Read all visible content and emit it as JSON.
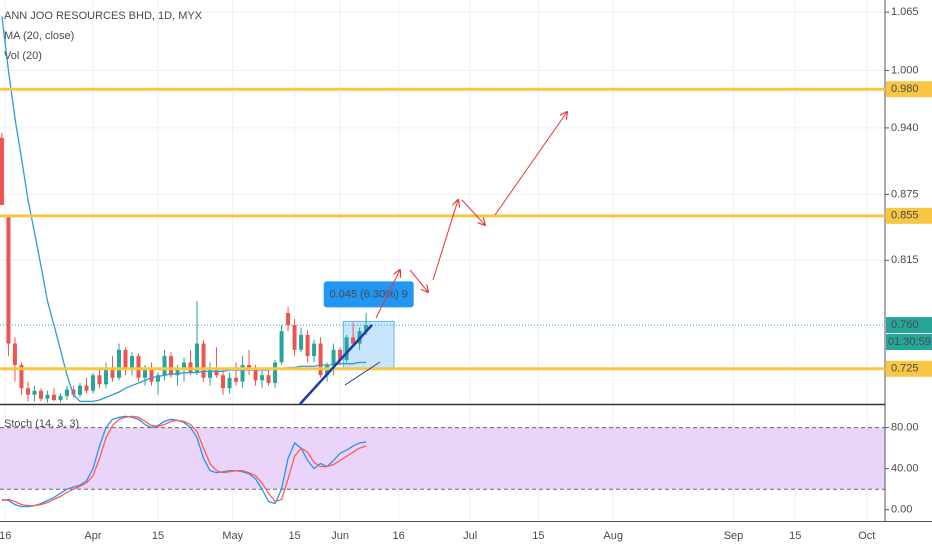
{
  "chart_data": [
    {
      "type": "candlestick",
      "title": "ANN JOO RESOURCES BHD, 1D, MYX",
      "volume_label": "Vol (20)",
      "log_scale": true,
      "grid": true,
      "up_color": "#26a69a",
      "down_color": "#ef5350",
      "x": [
        0,
        1,
        2,
        3,
        4,
        5,
        6,
        7,
        8,
        9,
        10,
        11,
        12,
        13,
        14,
        15,
        16,
        17,
        18,
        19,
        20,
        21,
        22,
        23,
        24,
        25,
        26,
        27,
        28,
        29,
        30,
        31,
        32,
        33,
        34,
        35,
        36,
        37,
        38,
        39,
        40,
        41,
        42,
        43,
        44,
        45,
        46,
        47,
        48,
        49,
        50,
        51,
        52,
        53,
        54,
        55,
        56
      ],
      "open": [
        0.93,
        0.855,
        0.745,
        0.728,
        0.71,
        0.705,
        0.708,
        0.702,
        0.705,
        0.701,
        0.704,
        0.709,
        0.705,
        0.712,
        0.708,
        0.72,
        0.713,
        0.725,
        0.718,
        0.74,
        0.724,
        0.735,
        0.718,
        0.725,
        0.715,
        0.72,
        0.735,
        0.72,
        0.724,
        0.73,
        0.722,
        0.745,
        0.718,
        0.726,
        0.72,
        0.71,
        0.718,
        0.715,
        0.728,
        0.724,
        0.716,
        0.72,
        0.714,
        0.73,
        0.77,
        0.76,
        0.74,
        0.752,
        0.735,
        0.745,
        0.72,
        0.728,
        0.74,
        0.732,
        0.75,
        0.745,
        0.755
      ],
      "high": [
        0.935,
        0.855,
        0.75,
        0.73,
        0.715,
        0.712,
        0.71,
        0.708,
        0.71,
        0.706,
        0.712,
        0.712,
        0.714,
        0.718,
        0.722,
        0.726,
        0.73,
        0.735,
        0.745,
        0.742,
        0.738,
        0.737,
        0.728,
        0.73,
        0.722,
        0.74,
        0.738,
        0.728,
        0.734,
        0.74,
        0.78,
        0.748,
        0.73,
        0.742,
        0.726,
        0.722,
        0.73,
        0.735,
        0.74,
        0.728,
        0.724,
        0.726,
        0.732,
        0.76,
        0.775,
        0.765,
        0.758,
        0.756,
        0.748,
        0.75,
        0.73,
        0.745,
        0.742,
        0.752,
        0.762,
        0.758,
        0.77
      ],
      "low": [
        0.865,
        0.735,
        0.715,
        0.705,
        0.7,
        0.7,
        0.7,
        0.699,
        0.7,
        0.699,
        0.701,
        0.703,
        0.703,
        0.706,
        0.706,
        0.71,
        0.71,
        0.715,
        0.716,
        0.72,
        0.72,
        0.715,
        0.712,
        0.712,
        0.705,
        0.716,
        0.718,
        0.712,
        0.715,
        0.72,
        0.72,
        0.715,
        0.712,
        0.718,
        0.705,
        0.706,
        0.712,
        0.71,
        0.72,
        0.712,
        0.71,
        0.712,
        0.71,
        0.728,
        0.755,
        0.735,
        0.738,
        0.73,
        0.73,
        0.718,
        0.715,
        0.72,
        0.728,
        0.73,
        0.742,
        0.74,
        0.752
      ],
      "close": [
        0.865,
        0.745,
        0.728,
        0.71,
        0.705,
        0.708,
        0.702,
        0.705,
        0.701,
        0.704,
        0.709,
        0.705,
        0.712,
        0.708,
        0.72,
        0.713,
        0.725,
        0.718,
        0.74,
        0.724,
        0.735,
        0.718,
        0.725,
        0.715,
        0.72,
        0.735,
        0.72,
        0.724,
        0.73,
        0.722,
        0.745,
        0.718,
        0.726,
        0.72,
        0.71,
        0.718,
        0.715,
        0.728,
        0.724,
        0.716,
        0.72,
        0.714,
        0.73,
        0.755,
        0.76,
        0.74,
        0.752,
        0.735,
        0.745,
        0.72,
        0.728,
        0.74,
        0.732,
        0.75,
        0.745,
        0.755,
        0.76
      ],
      "series": [
        {
          "name": "MA (20, close)",
          "color": "#2e9bd6",
          "values": [
            1.06,
            1.0,
            0.95,
            0.91,
            0.87,
            0.84,
            0.81,
            0.78,
            0.76,
            0.74,
            0.72,
            0.705,
            0.7,
            0.7,
            0.7,
            0.701,
            0.703,
            0.705,
            0.707,
            0.71,
            0.712,
            0.714,
            0.716,
            0.718,
            0.719,
            0.72,
            0.721,
            0.721,
            0.722,
            0.722,
            0.722,
            0.723,
            0.723,
            0.723,
            0.723,
            0.724,
            0.724,
            0.724,
            0.724,
            0.724,
            0.724,
            0.724,
            0.725,
            0.725,
            0.726,
            0.726,
            0.727,
            0.727,
            0.727,
            0.728,
            0.728,
            0.728,
            0.729,
            0.729,
            0.729,
            0.73,
            0.73
          ]
        }
      ],
      "xlim": [
        -0.3,
        135.8
      ],
      "xticks": [
        {
          "value": 0.5,
          "label": "16"
        },
        {
          "value": 14,
          "label": "Apr"
        },
        {
          "value": 24,
          "label": "15"
        },
        {
          "value": 35.5,
          "label": "May"
        },
        {
          "value": 45,
          "label": "15"
        },
        {
          "value": 52,
          "label": "Jun"
        },
        {
          "value": 61,
          "label": "16"
        },
        {
          "value": 72,
          "label": "Jul"
        },
        {
          "value": 82.5,
          "label": "15"
        },
        {
          "value": 94,
          "label": "Aug"
        },
        {
          "value": 112.5,
          "label": "Sep"
        },
        {
          "value": 122,
          "label": "15"
        },
        {
          "value": 133,
          "label": "Oct"
        }
      ],
      "ylim": [
        0.698,
        1.079
      ],
      "yticks": [
        1.065,
        {
          "value": 1.0,
          "label": "1.000"
        },
        {
          "value": 0.94,
          "label": "0.940"
        },
        0.875,
        0.815
      ],
      "levels": [
        {
          "value": 0.98,
          "label": "0.980"
        },
        {
          "value": 0.855,
          "label": "0.855"
        },
        {
          "value": 0.725,
          "label": "0.725"
        }
      ],
      "level_color": "#f7c744",
      "last_price": {
        "value": 0.76,
        "label": "0.760"
      },
      "countdown": "01:30:59",
      "measure": {
        "label": "0.045 (6.30%) 9",
        "price_range": [
          0.725,
          0.763
        ],
        "bar_range": [
          52.5,
          60.3
        ]
      }
    },
    {
      "type": "line",
      "title": "Stoch (14, 3, 3)",
      "x": [
        0,
        1,
        2,
        3,
        4,
        5,
        6,
        7,
        8,
        9,
        10,
        11,
        12,
        13,
        14,
        15,
        16,
        17,
        18,
        19,
        20,
        21,
        22,
        23,
        24,
        25,
        26,
        27,
        28,
        29,
        30,
        31,
        32,
        33,
        34,
        35,
        36,
        37,
        38,
        39,
        40,
        41,
        42,
        43,
        44,
        45,
        46,
        47,
        48,
        49,
        50,
        51,
        52,
        53,
        54,
        55,
        56
      ],
      "series": [
        {
          "name": "%K",
          "color": "#2196f3",
          "values": [
            10,
            9,
            5,
            3,
            3,
            4,
            6,
            9,
            12,
            16,
            20,
            22,
            24,
            28,
            40,
            62,
            80,
            88,
            90,
            91,
            90,
            88,
            83,
            80,
            82,
            86,
            88,
            87,
            85,
            80,
            70,
            50,
            38,
            36,
            37,
            38,
            38,
            37,
            35,
            30,
            20,
            8,
            6,
            20,
            50,
            65,
            60,
            48,
            40,
            45,
            42,
            48,
            55,
            58,
            62,
            65,
            66
          ]
        },
        {
          "name": "%D",
          "color": "#ff5c4d",
          "values": [
            9,
            10,
            8,
            5,
            4,
            4,
            5,
            7,
            10,
            13,
            17,
            20,
            23,
            26,
            33,
            50,
            70,
            82,
            88,
            90,
            91,
            90,
            86,
            82,
            81,
            83,
            86,
            87,
            86,
            83,
            76,
            60,
            45,
            38,
            36,
            37,
            38,
            38,
            36,
            33,
            26,
            16,
            8,
            10,
            30,
            52,
            60,
            56,
            46,
            42,
            42,
            44,
            48,
            52,
            56,
            60,
            62
          ]
        }
      ],
      "xlim": [
        -0.3,
        135.8
      ],
      "ylim": [
        -10,
        101
      ],
      "yticks": [
        {
          "value": 80,
          "label": "80.00"
        },
        {
          "value": 40,
          "label": "40.00"
        },
        {
          "value": 0,
          "label": "0.00"
        }
      ],
      "band": [
        20,
        80
      ],
      "band_color": "#e6c9f7"
    }
  ]
}
